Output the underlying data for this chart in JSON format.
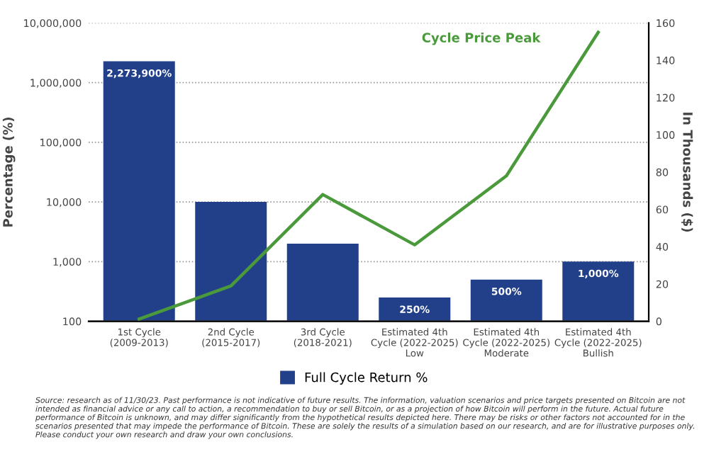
{
  "chart_data": {
    "type": "bar",
    "ylabel": "Percentage (%)",
    "y2label": "In Thousands ($)",
    "categories": [
      "1st Cycle\n(2009-2013)",
      "2nd Cycle\n(2015-2017)",
      "3rd Cycle\n(2018-2021)",
      "Estimated 4th\nCycle (2022-2025)\nLow",
      "Estimated 4th\nCycle (2022-2025)\nModerate",
      "Estimated 4th\nCycle (2022-2025)\nBullish"
    ],
    "series": [
      {
        "name": "Full Cycle Return %",
        "color": "#22408a",
        "values": [
          2273900,
          10000,
          2000,
          250,
          500,
          1000
        ],
        "value_labels": [
          "2,273,900%",
          null,
          null,
          "250%",
          "500%",
          "1,000%"
        ]
      },
      {
        "name": "Cycle Price Peak",
        "type": "line",
        "axis": "y2",
        "color": "#4a9a3c",
        "values": [
          1.2,
          19,
          68,
          41,
          78,
          155
        ]
      }
    ],
    "log": "y",
    "ylim": [
      100,
      10000000
    ],
    "yticks": [
      {
        "value": 100,
        "label": "100"
      },
      {
        "value": 1000,
        "label": "1,000"
      },
      {
        "value": 10000,
        "label": "10,000"
      },
      {
        "value": 100000,
        "label": "100,000"
      },
      {
        "value": 1000000,
        "label": "1,000,000"
      },
      {
        "value": 10000000,
        "label": "10,000,000"
      }
    ],
    "y2lim": [
      0,
      160
    ],
    "y2ticks": [
      0,
      20,
      40,
      60,
      80,
      100,
      120,
      140,
      160
    ],
    "grid": "y",
    "legend": "bottom",
    "marker": "none",
    "line_style": "solid",
    "annotations": [
      "Source: research as of 11/30/23. Past performance is not indicative of future results. The information, valuation scenarios and price targets presented on Bitcoin are not intended as financial advice or any call to action, a recommendation to buy or sell Bitcoin, or as a projection of how Bitcoin will perform in the future. Actual future performance of Bitcoin is unknown, and may differ significantly from the hypothetical results depicted here. There may be risks or other factors not accounted for in the scenarios presented that may impede the performance of Bitcoin. These are solely the results of a simulation based on our research, and are for illustrative purposes only. Please conduct your own research and draw your own conclusions."
    ]
  }
}
